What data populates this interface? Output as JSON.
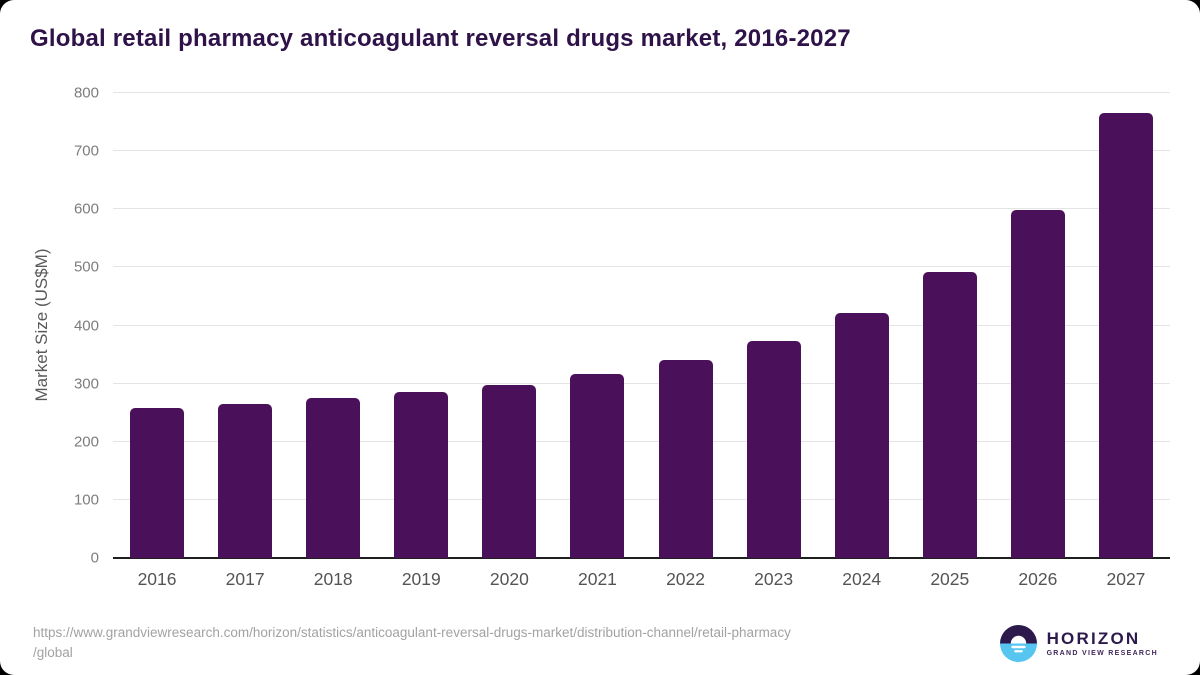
{
  "title": "Global retail pharmacy anticoagulant reversal drugs market, 2016-2027",
  "chart_data": {
    "type": "bar",
    "categories": [
      "2016",
      "2017",
      "2018",
      "2019",
      "2020",
      "2021",
      "2022",
      "2023",
      "2024",
      "2025",
      "2026",
      "2027"
    ],
    "values": [
      258,
      265,
      275,
      285,
      298,
      316,
      340,
      374,
      421,
      492,
      598,
      766
    ],
    "title": "Global retail pharmacy anticoagulant reversal drugs market, 2016-2027",
    "xlabel": "",
    "ylabel": "Market Size (US$M)",
    "ylim": [
      0,
      800
    ],
    "yticks": [
      0,
      100,
      200,
      300,
      400,
      500,
      600,
      700,
      800
    ],
    "grid": "horizontal",
    "legend": "none",
    "bar_color": "#4a115a"
  },
  "footer": {
    "source_line1": "https://www.grandviewresearch.com/horizon/statistics/anticoagulant-reversal-drugs-market/distribution-channel/retail-pharmacy",
    "source_line2": "/global",
    "logo": {
      "name": "HORIZON",
      "subtitle": "GRAND VIEW RESEARCH",
      "icon": "sunset-horizon-icon",
      "purple": "#2d1a4d",
      "blue": "#56c5f0"
    }
  },
  "colors": {
    "bar": "#4a115a",
    "title_text": "#2e1248",
    "gridline": "#e4e4e4",
    "axis_line": "#1e1e1e",
    "tick_text": "#7d7d7d"
  }
}
